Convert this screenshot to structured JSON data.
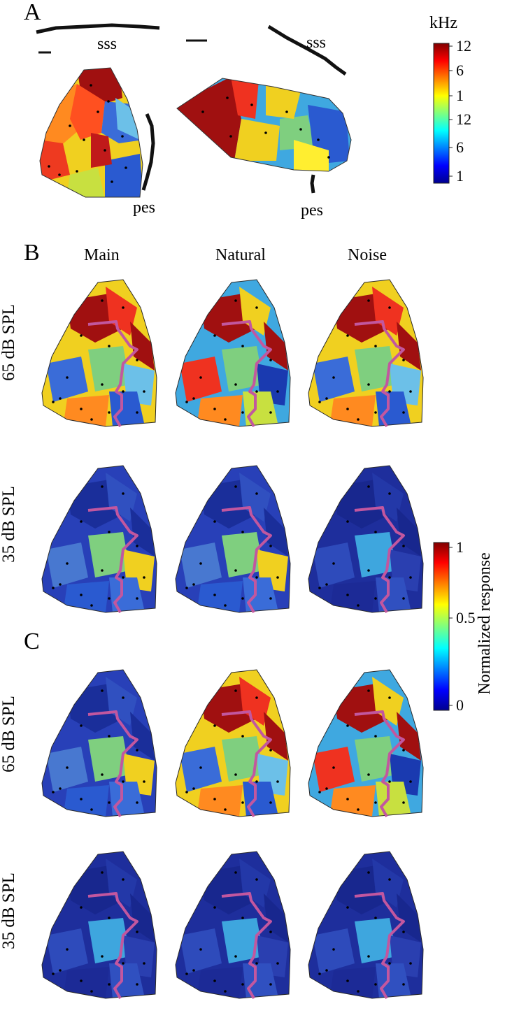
{
  "panels": {
    "a": {
      "letter": "A",
      "label_sss": "sss",
      "label_pes": "pes"
    },
    "b": {
      "letter": "B"
    },
    "c": {
      "letter": "C"
    }
  },
  "columns": [
    "Main",
    "Natural",
    "Noise"
  ],
  "rows": {
    "high": "65 dB SPL",
    "low": "35 dB SPL"
  },
  "freq_colorbar": {
    "unit": "kHz",
    "ticks": [
      "12",
      "6",
      "1",
      "12",
      "6",
      "1"
    ]
  },
  "response_colorbar": {
    "label": "Normalized response",
    "ticks": [
      "1",
      "0.5",
      "0"
    ]
  },
  "colors": {
    "pink_trace": "#c2579f",
    "border": "#2a2a2a",
    "jet_low": "#1a1a8c",
    "jet_mid": "#7fcf7f",
    "jet_high": "#8c0d0d"
  }
}
